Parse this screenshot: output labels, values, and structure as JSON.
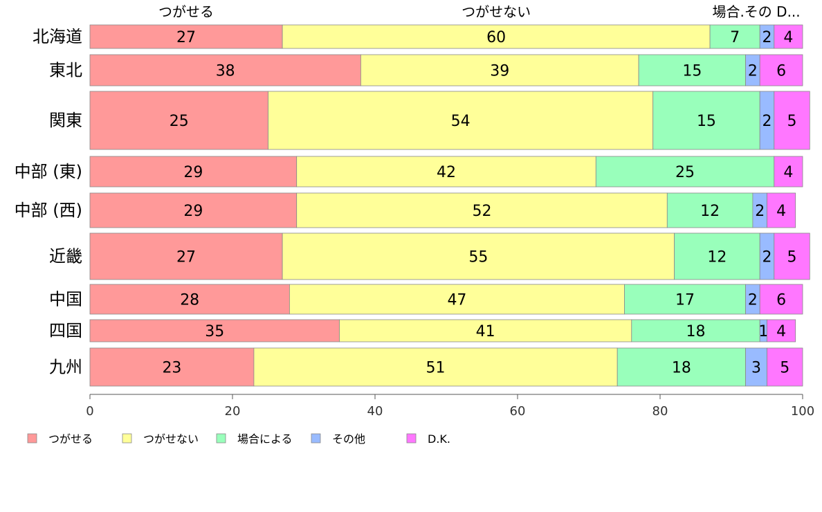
{
  "chart_data": {
    "type": "bar",
    "orientation": "horizontal",
    "stacked": true,
    "categories": [
      "北海道",
      "東北",
      "関東",
      "中部 (東)",
      "中部 (西)",
      "近畿",
      "中国",
      "四国",
      "九州"
    ],
    "series": [
      {
        "name": "つがせる",
        "color": "#ff9999",
        "values": [
          27,
          38,
          25,
          29,
          29,
          27,
          28,
          35,
          23
        ]
      },
      {
        "name": "つがせない",
        "color": "#ffff99",
        "values": [
          60,
          39,
          54,
          42,
          52,
          55,
          47,
          41,
          51
        ]
      },
      {
        "name": "場合による",
        "color": "#99ffbb",
        "values": [
          7,
          15,
          15,
          25,
          12,
          12,
          17,
          18,
          18
        ]
      },
      {
        "name": "その他",
        "color": "#99bbff",
        "values": [
          2,
          2,
          2,
          0,
          2,
          2,
          2,
          1,
          3
        ]
      },
      {
        "name": "D.K.",
        "color": "#ff77ff",
        "values": [
          4,
          6,
          5,
          4,
          4,
          5,
          6,
          4,
          5
        ]
      }
    ],
    "top_labels": [
      "つがせる",
      "つがせない",
      "場合.その D..."
    ],
    "xlim": [
      0,
      100
    ],
    "xticks": [
      "0",
      "20",
      "40",
      "60",
      "80",
      "100"
    ],
    "grid": false,
    "legend_position": "bottom"
  }
}
